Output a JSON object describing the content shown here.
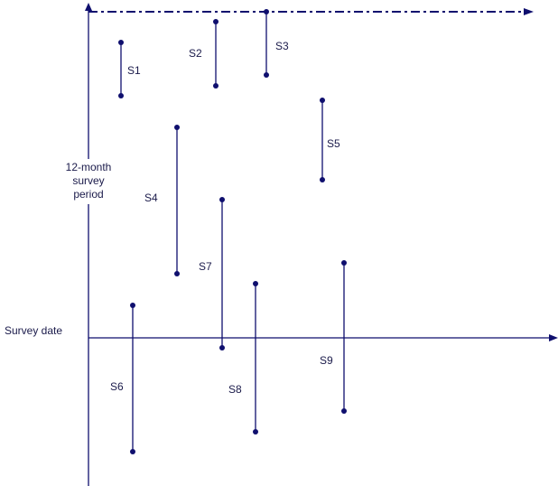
{
  "diagram": {
    "color": "#0f0f6e",
    "vertical_axis_label": [
      "12-month",
      "survey",
      "period"
    ],
    "horizontal_axis_label": "Survey date",
    "segments": [
      {
        "label": "S1"
      },
      {
        "label": "S2"
      },
      {
        "label": "S3"
      },
      {
        "label": "S4"
      },
      {
        "label": "S5"
      },
      {
        "label": "S6"
      },
      {
        "label": "S7"
      },
      {
        "label": "S8"
      },
      {
        "label": "S9"
      }
    ]
  }
}
